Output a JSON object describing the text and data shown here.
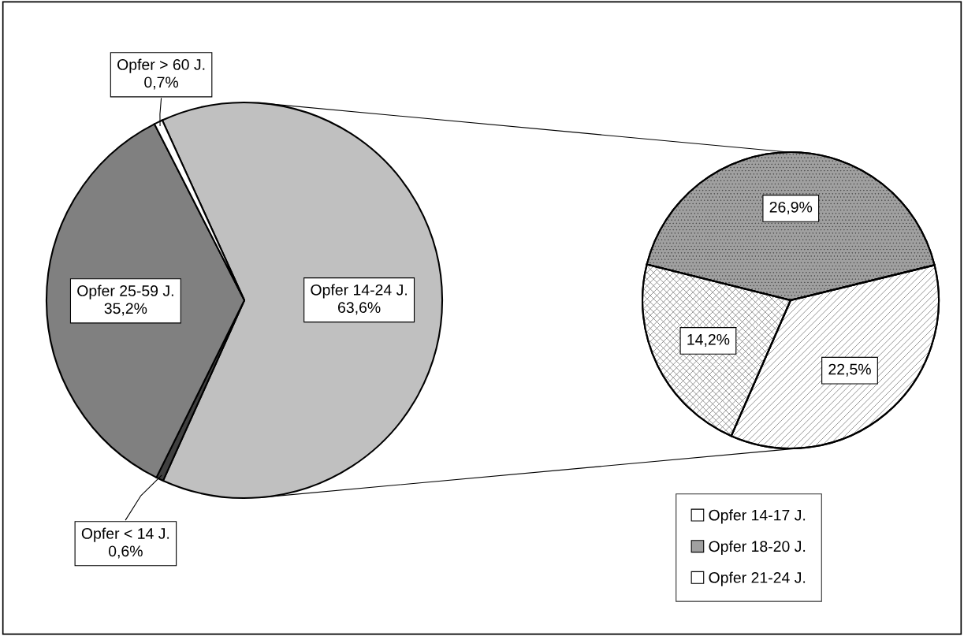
{
  "chart_data": [
    {
      "type": "pie",
      "categories": [
        "Opfer 14-24 J.",
        "Opfer < 14 J.",
        "Opfer 25-59 J.",
        "Opfer > 60 J."
      ],
      "values": [
        63.6,
        0.6,
        35.2,
        0.7
      ],
      "value_labels": [
        "63,6%",
        "0,6%",
        "35,2%",
        "0,7%"
      ],
      "colors": [
        "#c0c0c0",
        "#404040",
        "#808080",
        "#ffffff"
      ]
    },
    {
      "type": "pie",
      "categories": [
        "Opfer 18-20 J.",
        "Opfer 21-24 J.",
        "Opfer 14-17 J."
      ],
      "values": [
        26.9,
        22.5,
        14.2
      ],
      "value_labels": [
        "26,9%",
        "22,5%",
        "14,2%"
      ],
      "colors": [
        "#a0a0a0",
        "#ffffff",
        "#ffffff"
      ],
      "legend": "bottom"
    }
  ]
}
